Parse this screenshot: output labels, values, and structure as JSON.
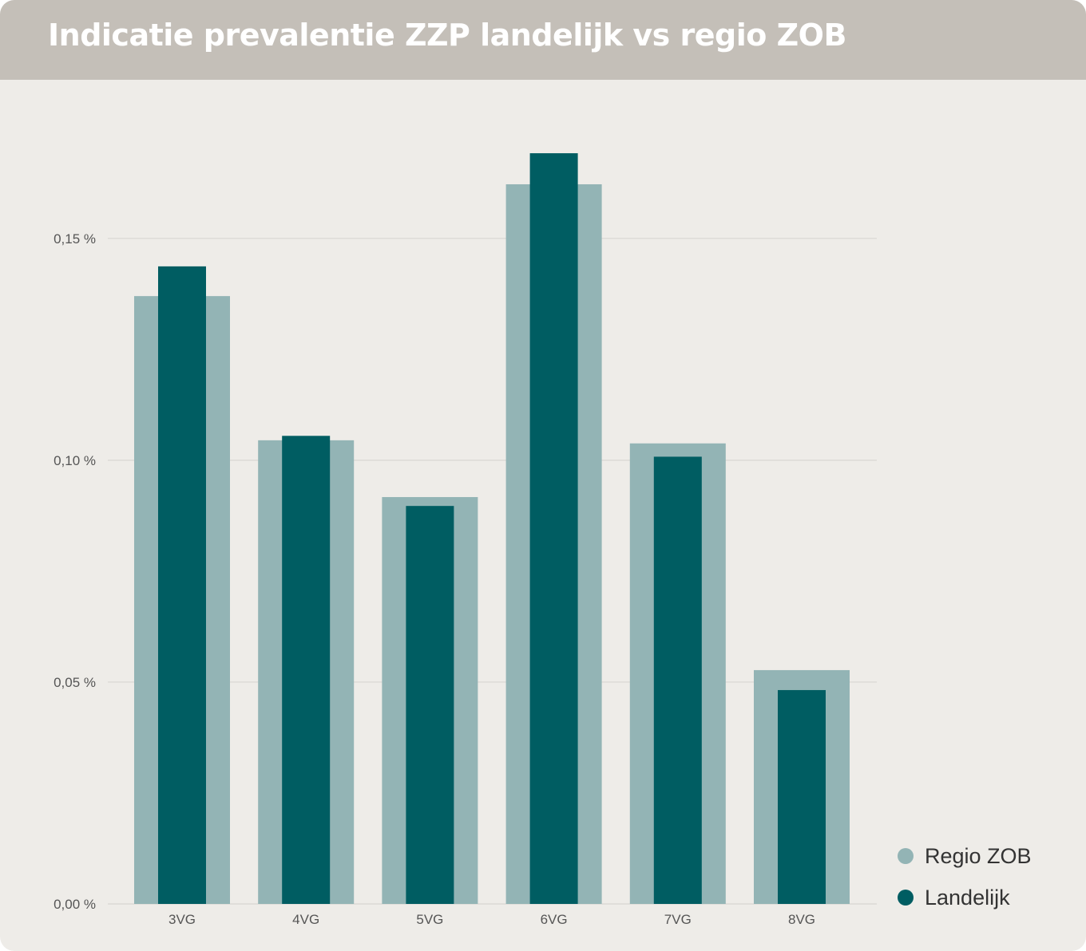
{
  "title": "Indicatie prevalentie ZZP landelijk vs regio ZOB",
  "colors": {
    "regio": "#93b4b5",
    "landelijk": "#005d62",
    "grid": "#d8d6d2",
    "header": "#c4bfb8",
    "background": "#eeece8"
  },
  "chart_data": {
    "type": "bar",
    "title": "Indicatie prevalentie ZZP landelijk vs regio ZOB",
    "categories": [
      "3VG",
      "4VG",
      "5VG",
      "6VG",
      "7VG",
      "8VG"
    ],
    "series": [
      {
        "name": "Regio ZOB",
        "values": [
          0.137,
          0.1045,
          0.0917,
          0.1622,
          0.1038,
          0.0527
        ]
      },
      {
        "name": "Landelijk",
        "values": [
          0.1437,
          0.1055,
          0.0897,
          0.1692,
          0.1008,
          0.0482
        ]
      }
    ],
    "yticks": [
      "0,00 %",
      "0,05 %",
      "0,10 %",
      "0,15 %"
    ],
    "ytick_values": [
      0,
      0.05,
      0.1,
      0.15
    ],
    "ylim": [
      0,
      0.18
    ],
    "grid": true,
    "legend_position": "bottom-right",
    "xlabel": "",
    "ylabel": ""
  },
  "legend": [
    {
      "label": "Regio ZOB",
      "color": "#93b4b5"
    },
    {
      "label": "Landelijk",
      "color": "#005d62"
    }
  ]
}
